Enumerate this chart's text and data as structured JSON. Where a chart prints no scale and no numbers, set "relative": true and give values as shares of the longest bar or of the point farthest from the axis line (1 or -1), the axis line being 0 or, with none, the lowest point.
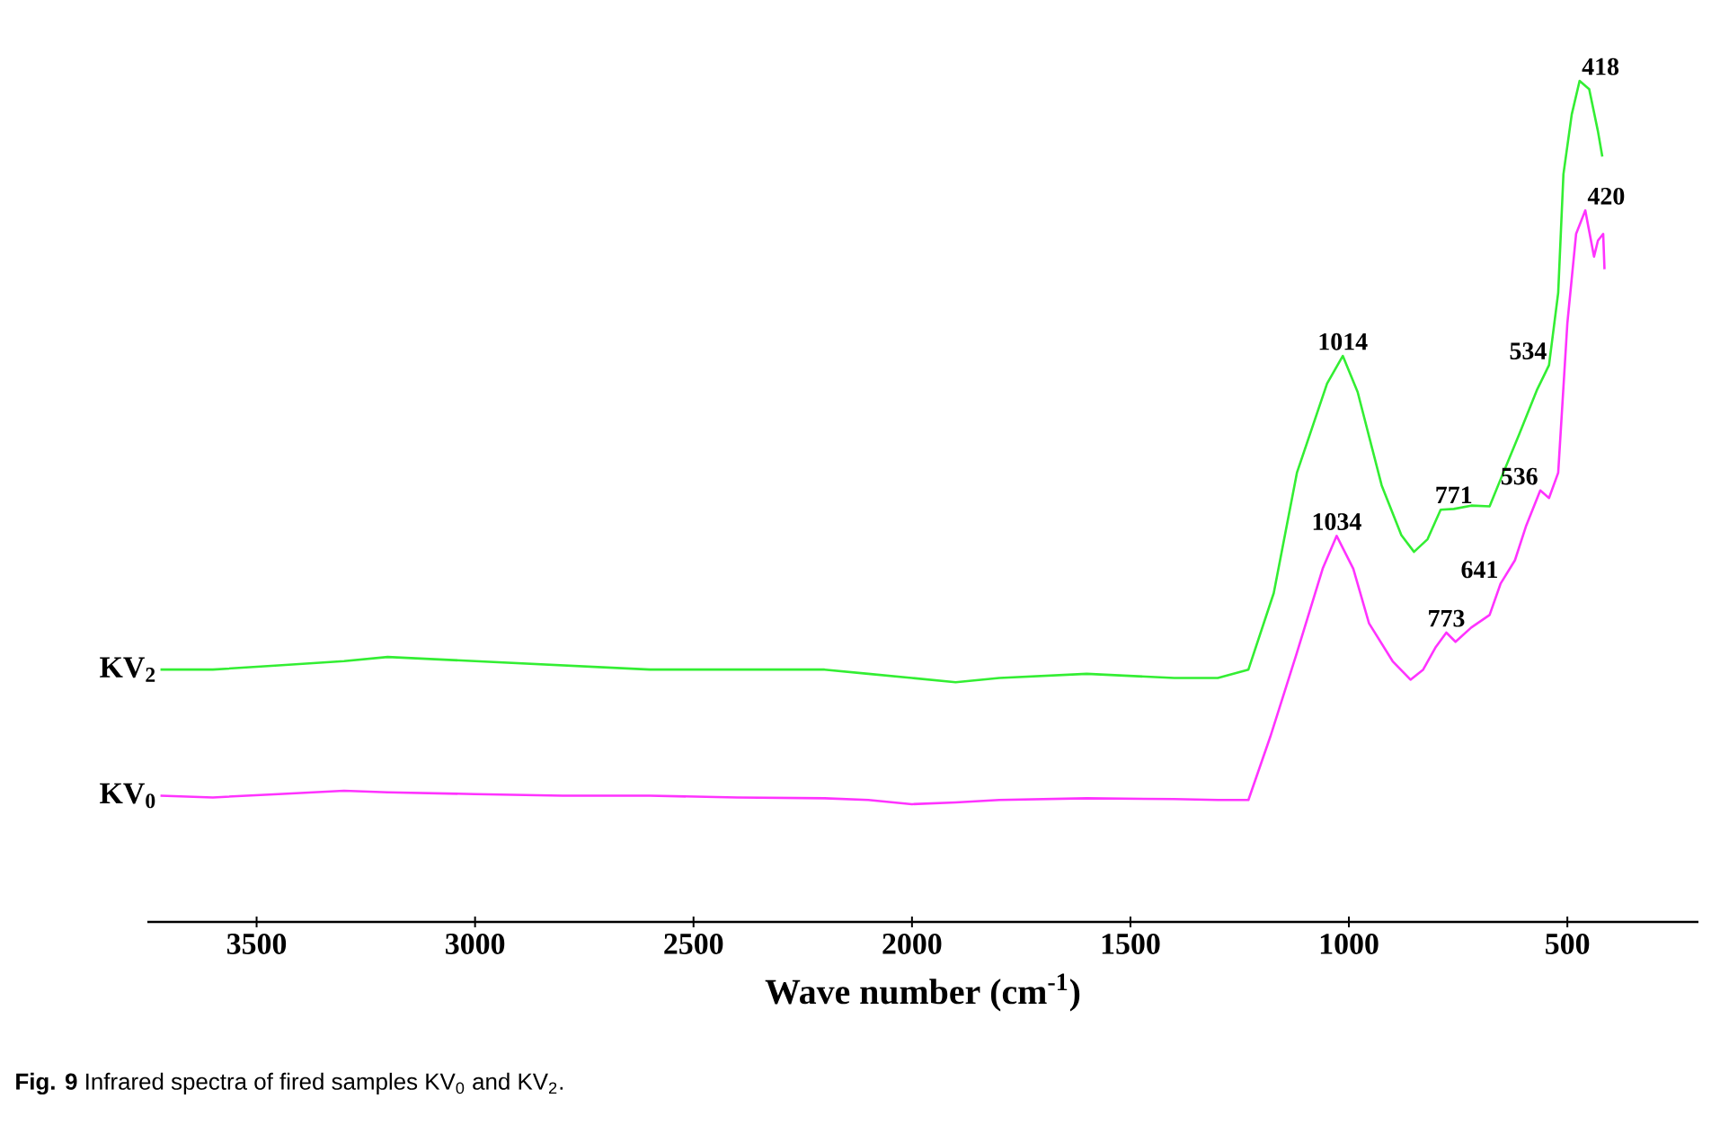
{
  "chart_data": {
    "type": "line",
    "relative": true,
    "xlabel": "Wave number (cm$^{-1}$)",
    "xlim": [
      3750,
      200
    ],
    "xticks": [
      3500,
      3000,
      2500,
      2000,
      1500,
      1000,
      500
    ],
    "tick_labels": "x",
    "legend": false,
    "grid": false,
    "series": [
      {
        "name": "KV$_{2}$",
        "color": "#33ee33",
        "x": [
          3720,
          3600,
          3450,
          3300,
          3200,
          3000,
          2800,
          2600,
          2400,
          2200,
          2100,
          2000,
          1900,
          1800,
          1600,
          1400,
          1300,
          1230,
          1172,
          1119,
          1050,
          1014,
          980,
          925,
          880,
          851,
          820,
          790,
          760,
          720,
          678,
          653,
          610,
          570,
          542,
          521,
          509,
          490,
          472,
          450,
          430,
          420
        ],
        "values": [
          0.3,
          0.3,
          0.305,
          0.31,
          0.315,
          0.31,
          0.305,
          0.3,
          0.3,
          0.3,
          0.295,
          0.29,
          0.285,
          0.29,
          0.295,
          0.29,
          0.29,
          0.3,
          0.391,
          0.534,
          0.64,
          0.673,
          0.63,
          0.519,
          0.46,
          0.44,
          0.455,
          0.49,
          0.491,
          0.495,
          0.494,
          0.526,
          0.58,
          0.632,
          0.662,
          0.748,
          0.889,
          0.96,
          1.0,
          0.99,
          0.94,
          0.91
        ]
      },
      {
        "name": "KV$_{0}$",
        "color": "#ff33ff",
        "x": [
          3720,
          3600,
          3450,
          3300,
          3200,
          3000,
          2800,
          2600,
          2400,
          2200,
          2100,
          2000,
          1900,
          1800,
          1600,
          1400,
          1300,
          1230,
          1180,
          1119,
          1060,
          1028,
          990,
          954,
          900,
          859,
          830,
          801,
          777,
          756,
          720,
          678,
          653,
          620,
          595,
          562,
          542,
          521,
          500,
          480,
          459,
          439,
          430,
          418,
          415
        ],
        "values": [
          0.15,
          0.148,
          0.152,
          0.156,
          0.154,
          0.152,
          0.15,
          0.15,
          0.148,
          0.147,
          0.145,
          0.14,
          0.142,
          0.145,
          0.147,
          0.146,
          0.145,
          0.145,
          0.22,
          0.32,
          0.42,
          0.459,
          0.42,
          0.355,
          0.31,
          0.288,
          0.3,
          0.327,
          0.344,
          0.333,
          0.35,
          0.365,
          0.402,
          0.43,
          0.47,
          0.513,
          0.504,
          0.534,
          0.712,
          0.818,
          0.846,
          0.791,
          0.81,
          0.818,
          0.776
        ]
      }
    ],
    "annotations": [
      {
        "text": "1014",
        "x": 1014,
        "y": 0.673
      },
      {
        "text": "771",
        "x": 760,
        "y": 0.491
      },
      {
        "text": "534",
        "x": 542,
        "y": 0.662
      },
      {
        "text": "418",
        "x": 472,
        "y": 1.0
      },
      {
        "text": "1034",
        "x": 1028,
        "y": 0.459
      },
      {
        "text": "773",
        "x": 777,
        "y": 0.344
      },
      {
        "text": "641",
        "x": 653,
        "y": 0.402
      },
      {
        "text": "536",
        "x": 562,
        "y": 0.513
      },
      {
        "text": "420",
        "x": 459,
        "y": 0.846
      },
      "**Fig. 9** Infrared spectra of fired samples KV$_{0}$ and KV$_{2}$."
    ]
  }
}
